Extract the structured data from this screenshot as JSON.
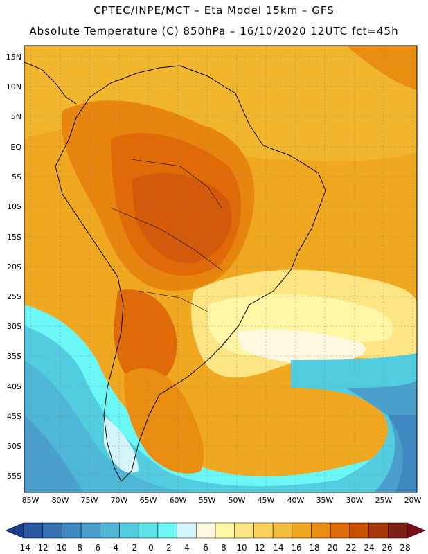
{
  "header": {
    "line1": "CPTEC/INPE/MCT –   Eta Model 15km – GFS",
    "line2": "Absolute Temperature (C) 850hPa – 16/10/2020 12UTC fct=45h"
  },
  "map": {
    "lat_labels": [
      "15N",
      "10N",
      "5N",
      "EQ",
      "5S",
      "10S",
      "15S",
      "20S",
      "25S",
      "30S",
      "35S",
      "40S",
      "45S",
      "50S",
      "55S"
    ],
    "lon_labels": [
      "85W",
      "80W",
      "75W",
      "70W",
      "65W",
      "60W",
      "55W",
      "50W",
      "45W",
      "40W",
      "35W",
      "30W",
      "25W",
      "20W"
    ]
  },
  "colorbar": {
    "labels": [
      "-14",
      "-12",
      "-10",
      "-8",
      "-6",
      "-4",
      "-2",
      "0",
      "2",
      "4",
      "6",
      "8",
      "10",
      "12",
      "14",
      "16",
      "18",
      "20",
      "22",
      "24",
      "26",
      "28"
    ],
    "colors": [
      "#1b3d8a",
      "#2a58a3",
      "#3570b3",
      "#3f88c2",
      "#4a9fcc",
      "#4eb6d6",
      "#52cde0",
      "#5be4ea",
      "#6cf7f7",
      "#d4f4fb",
      "#fff8e0",
      "#fff7a6",
      "#fde584",
      "#fbd25a",
      "#f2bd3a",
      "#efa820",
      "#ea8e12",
      "#e06a08",
      "#c85000",
      "#a8380a",
      "#7e2012",
      "#7a0f1a"
    ]
  }
}
